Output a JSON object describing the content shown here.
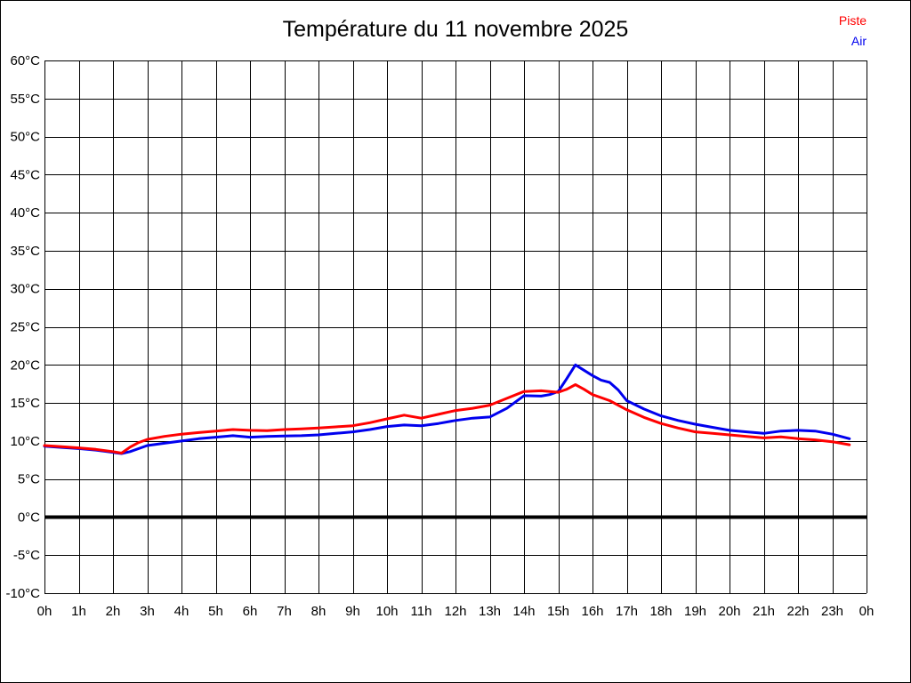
{
  "chart_data": {
    "type": "line",
    "title": "Température du 11 novembre 2025",
    "legend_position": "top-right",
    "grid": true,
    "background": "#ffffff",
    "border_color": "#000000",
    "legend": [
      {
        "label": "Piste",
        "color": "#ff0000"
      },
      {
        "label": "Air",
        "color": "#0000ee"
      }
    ],
    "x_axis": {
      "label": "",
      "unit": "h",
      "range": [
        0,
        24
      ],
      "tick_step_hours": 1,
      "tick_labels": [
        "0h",
        "1h",
        "2h",
        "3h",
        "4h",
        "5h",
        "6h",
        "7h",
        "8h",
        "9h",
        "10h",
        "11h",
        "12h",
        "13h",
        "14h",
        "15h",
        "16h",
        "17h",
        "18h",
        "19h",
        "20h",
        "21h",
        "22h",
        "23h",
        "0h"
      ],
      "tick_values": [
        0,
        1,
        2,
        3,
        4,
        5,
        6,
        7,
        8,
        9,
        10,
        11,
        12,
        13,
        14,
        15,
        16,
        17,
        18,
        19,
        20,
        21,
        22,
        23,
        24
      ]
    },
    "y_axis": {
      "label": "",
      "unit": "°C",
      "range": [
        -10,
        60
      ],
      "tick_step": 5,
      "tick_labels": [
        "60°C",
        "55°C",
        "50°C",
        "45°C",
        "40°C",
        "35°C",
        "30°C",
        "25°C",
        "20°C",
        "15°C",
        "10°C",
        "5°C",
        "0°C",
        "-5°C",
        "-10°C"
      ],
      "tick_values": [
        60,
        55,
        50,
        45,
        40,
        35,
        30,
        25,
        20,
        15,
        10,
        5,
        0,
        -5,
        -10
      ],
      "zero_line_bold": true
    },
    "series": [
      {
        "name": "Air",
        "color": "#0000ee",
        "points": [
          [
            0,
            9.3
          ],
          [
            0.5,
            9.15
          ],
          [
            1,
            9.0
          ],
          [
            1.5,
            8.8
          ],
          [
            2,
            8.5
          ],
          [
            2.25,
            8.35
          ],
          [
            2.5,
            8.6
          ],
          [
            3,
            9.4
          ],
          [
            3.5,
            9.7
          ],
          [
            4,
            10.0
          ],
          [
            4.5,
            10.3
          ],
          [
            5,
            10.5
          ],
          [
            5.5,
            10.7
          ],
          [
            6,
            10.5
          ],
          [
            6.5,
            10.6
          ],
          [
            7,
            10.65
          ],
          [
            7.5,
            10.7
          ],
          [
            8,
            10.8
          ],
          [
            8.5,
            11.0
          ],
          [
            9,
            11.2
          ],
          [
            9.5,
            11.5
          ],
          [
            10,
            11.9
          ],
          [
            10.5,
            12.1
          ],
          [
            11,
            12.0
          ],
          [
            11.5,
            12.3
          ],
          [
            12,
            12.7
          ],
          [
            12.5,
            13.0
          ],
          [
            13,
            13.15
          ],
          [
            13.5,
            14.3
          ],
          [
            14,
            15.95
          ],
          [
            14.5,
            15.9
          ],
          [
            14.75,
            16.1
          ],
          [
            15,
            16.5
          ],
          [
            15.25,
            18.2
          ],
          [
            15.5,
            20.0
          ],
          [
            15.75,
            19.3
          ],
          [
            16,
            18.6
          ],
          [
            16.25,
            18.0
          ],
          [
            16.5,
            17.7
          ],
          [
            16.75,
            16.7
          ],
          [
            17,
            15.3
          ],
          [
            17.5,
            14.2
          ],
          [
            18,
            13.3
          ],
          [
            18.5,
            12.7
          ],
          [
            19,
            12.2
          ],
          [
            19.5,
            11.8
          ],
          [
            20,
            11.4
          ],
          [
            20.5,
            11.2
          ],
          [
            21,
            11.0
          ],
          [
            21.5,
            11.3
          ],
          [
            22,
            11.4
          ],
          [
            22.5,
            11.3
          ],
          [
            23,
            10.9
          ],
          [
            23.5,
            10.3
          ]
        ]
      },
      {
        "name": "Piste",
        "color": "#ff0000",
        "points": [
          [
            0,
            9.4
          ],
          [
            0.5,
            9.25
          ],
          [
            1,
            9.1
          ],
          [
            1.5,
            8.9
          ],
          [
            2,
            8.6
          ],
          [
            2.25,
            8.4
          ],
          [
            2.5,
            9.2
          ],
          [
            2.75,
            9.8
          ],
          [
            3,
            10.2
          ],
          [
            3.5,
            10.6
          ],
          [
            4,
            10.9
          ],
          [
            4.5,
            11.1
          ],
          [
            5,
            11.3
          ],
          [
            5.5,
            11.5
          ],
          [
            6,
            11.4
          ],
          [
            6.5,
            11.35
          ],
          [
            7,
            11.5
          ],
          [
            7.5,
            11.6
          ],
          [
            8,
            11.7
          ],
          [
            8.5,
            11.85
          ],
          [
            9,
            12.0
          ],
          [
            9.5,
            12.4
          ],
          [
            10,
            12.9
          ],
          [
            10.5,
            13.4
          ],
          [
            11,
            13.0
          ],
          [
            11.5,
            13.5
          ],
          [
            12,
            14.0
          ],
          [
            12.5,
            14.3
          ],
          [
            13,
            14.7
          ],
          [
            13.5,
            15.6
          ],
          [
            14,
            16.5
          ],
          [
            14.5,
            16.6
          ],
          [
            15,
            16.4
          ],
          [
            15.25,
            16.8
          ],
          [
            15.5,
            17.4
          ],
          [
            15.75,
            16.8
          ],
          [
            16,
            16.1
          ],
          [
            16.5,
            15.3
          ],
          [
            17,
            14.1
          ],
          [
            17.5,
            13.1
          ],
          [
            18,
            12.3
          ],
          [
            18.5,
            11.7
          ],
          [
            19,
            11.2
          ],
          [
            19.5,
            11.0
          ],
          [
            20,
            10.8
          ],
          [
            20.5,
            10.6
          ],
          [
            21,
            10.4
          ],
          [
            21.5,
            10.55
          ],
          [
            22,
            10.3
          ],
          [
            22.5,
            10.15
          ],
          [
            23,
            9.9
          ],
          [
            23.5,
            9.5
          ]
        ]
      }
    ]
  }
}
